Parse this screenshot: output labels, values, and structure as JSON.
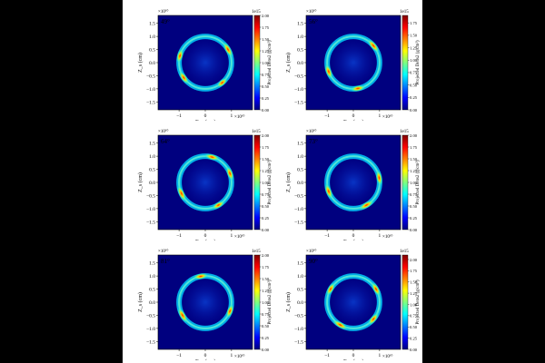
{
  "figure": {
    "background": "#000000",
    "page_color": "#ffffff",
    "colormap": [
      "#00007f",
      "#0000ff",
      "#007fff",
      "#00ffff",
      "#7fff7f",
      "#ffff00",
      "#ff7f00",
      "#ff0000",
      "#7f0000"
    ]
  },
  "chart_data": [
    {
      "type": "heatmap",
      "angle_label": "49°",
      "xlabel": "X_s (cm)",
      "ylabel": "Z_s (cm)",
      "x_exponent": "×10¹⁰",
      "y_exponent": "×10¹⁰",
      "xlim": [
        -1.8,
        1.8
      ],
      "ylim": [
        -1.8,
        1.8
      ],
      "xticks": [
        "−1",
        "0",
        "1"
      ],
      "yticks": [
        "1.5",
        "1.0",
        "0.5",
        "0.0",
        "−0.5",
        "−1.0",
        "−1.5"
      ],
      "colorbar": {
        "label": "Projected Dens2",
        "unit": "(g/cm²)",
        "exponent": "1e15",
        "range": [
          0,
          2.0
        ],
        "ticks": [
          "2.00",
          "1.75",
          "1.50",
          "1.25",
          "1.00",
          "0.75",
          "0.50",
          "0.25",
          "0.00"
        ]
      },
      "ring": {
        "radius": 1.0
      },
      "hotspots": [
        {
          "angle_deg": 30,
          "intensity": 1.0
        },
        {
          "angle_deg": 165,
          "intensity": 0.8
        },
        {
          "angle_deg": 215,
          "intensity": 0.85
        },
        {
          "angle_deg": 310,
          "intensity": 0.7
        }
      ]
    },
    {
      "type": "heatmap",
      "angle_label": "56°",
      "xlabel": "X_s (cm)",
      "ylabel": "Z_s (cm)",
      "x_exponent": "×10¹⁰",
      "y_exponent": "×10¹⁰",
      "xlim": [
        -1.8,
        1.8
      ],
      "ylim": [
        -1.8,
        1.8
      ],
      "xticks": [
        "−1",
        "0",
        "1"
      ],
      "yticks": [
        "1.5",
        "1.0",
        "0.5",
        "0.0",
        "−0.5",
        "−1.0",
        "−1.5"
      ],
      "colorbar": {
        "label": "Projected Dens2",
        "unit": "(g/cm²)",
        "exponent": "1e15",
        "range": [
          0,
          1.9
        ],
        "ticks": [
          "1.75",
          "1.50",
          "1.25",
          "1.00",
          "0.75",
          "0.50",
          "0.25",
          "0.00"
        ]
      },
      "ring": {
        "radius": 1.0
      },
      "hotspots": [
        {
          "angle_deg": 40,
          "intensity": 1.0
        },
        {
          "angle_deg": 200,
          "intensity": 0.9
        },
        {
          "angle_deg": 280,
          "intensity": 0.85
        }
      ]
    },
    {
      "type": "heatmap",
      "angle_label": "64°",
      "xlabel": "X_s (cm)",
      "ylabel": "Z_s (cm)",
      "x_exponent": "×10¹⁰",
      "y_exponent": "×10¹⁰",
      "xlim": [
        -1.8,
        1.8
      ],
      "ylim": [
        -1.8,
        1.8
      ],
      "xticks": [
        "−1",
        "0",
        "1"
      ],
      "yticks": [
        "1.5",
        "1.0",
        "0.5",
        "0.0",
        "−0.5",
        "−1.0",
        "−1.5"
      ],
      "colorbar": {
        "label": "Projected Dens2",
        "unit": "(g/cm²)",
        "exponent": "1e15",
        "range": [
          0,
          2.0
        ],
        "ticks": [
          "2.00",
          "1.75",
          "1.50",
          "1.25",
          "1.00",
          "0.75",
          "0.50",
          "0.25",
          "0.00"
        ]
      },
      "ring": {
        "radius": 1.0
      },
      "hotspots": [
        {
          "angle_deg": 75,
          "intensity": 0.9
        },
        {
          "angle_deg": 20,
          "intensity": 0.85
        },
        {
          "angle_deg": 205,
          "intensity": 1.0
        },
        {
          "angle_deg": 300,
          "intensity": 0.8
        }
      ]
    },
    {
      "type": "heatmap",
      "angle_label": "73°",
      "xlabel": "X_s (cm)",
      "ylabel": "Z_s (cm)",
      "x_exponent": "×10¹⁰",
      "y_exponent": "×10¹⁰",
      "xlim": [
        -1.8,
        1.8
      ],
      "ylim": [
        -1.8,
        1.8
      ],
      "xticks": [
        "−1",
        "0",
        "1"
      ],
      "yticks": [
        "1.5",
        "1.0",
        "0.5",
        "0.0",
        "−0.5",
        "−1.0",
        "−1.5"
      ],
      "colorbar": {
        "label": "Projected Dens2",
        "unit": "(g/cm²)",
        "exponent": "1e15",
        "range": [
          0,
          2.0
        ],
        "ticks": [
          "2.00",
          "1.75",
          "1.50",
          "1.25",
          "1.00",
          "0.75",
          "0.50",
          "0.25",
          "0.00"
        ]
      },
      "ring": {
        "radius": 1.0
      },
      "hotspots": [
        {
          "angle_deg": 10,
          "intensity": 0.9
        },
        {
          "angle_deg": 200,
          "intensity": 0.95
        },
        {
          "angle_deg": 300,
          "intensity": 1.0
        }
      ]
    },
    {
      "type": "heatmap",
      "angle_label": "81°",
      "xlabel": "X_s (cm)",
      "ylabel": "Z_s (cm)",
      "x_exponent": "×10¹⁰",
      "y_exponent": "×10¹⁰",
      "xlim": [
        -1.8,
        1.8
      ],
      "ylim": [
        -1.8,
        1.8
      ],
      "xticks": [
        "−1",
        "0",
        "1"
      ],
      "yticks": [
        "1.5",
        "1.0",
        "0.5",
        "0.0",
        "−0.5",
        "−1.0",
        "−1.5"
      ],
      "colorbar": {
        "label": "Projected Dens2",
        "unit": "(g/cm²)",
        "exponent": "1e15",
        "range": [
          0,
          2.0
        ],
        "ticks": [
          "2.00",
          "1.75",
          "1.50",
          "1.25",
          "1.00",
          "0.75",
          "0.50",
          "0.25",
          "0.00"
        ]
      },
      "ring": {
        "radius": 1.0
      },
      "hotspots": [
        {
          "angle_deg": 100,
          "intensity": 0.85
        },
        {
          "angle_deg": 210,
          "intensity": 1.0
        },
        {
          "angle_deg": 340,
          "intensity": 0.8
        }
      ]
    },
    {
      "type": "heatmap",
      "angle_label": "90°",
      "xlabel": "X_s (cm)",
      "ylabel": "Z_s (cm)",
      "x_exponent": "×10¹⁰",
      "y_exponent": "×10¹⁰",
      "xlim": [
        -1.8,
        1.8
      ],
      "ylim": [
        -1.8,
        1.8
      ],
      "xticks": [
        "−1",
        "0",
        "1"
      ],
      "yticks": [
        "1.5",
        "1.0",
        "0.5",
        "0.0",
        "−0.5",
        "−1.0",
        "−1.5"
      ],
      "colorbar": {
        "label": "Projected Dens2",
        "unit": "(g/cm²)",
        "exponent": "1e15",
        "range": [
          0,
          2.1
        ],
        "ticks": [
          "2.00",
          "1.75",
          "1.50",
          "1.25",
          "1.00",
          "0.75",
          "0.50",
          "0.25",
          "0.00"
        ]
      },
      "ring": {
        "radius": 1.0
      },
      "hotspots": [
        {
          "angle_deg": 30,
          "intensity": 0.9
        },
        {
          "angle_deg": 150,
          "intensity": 0.8
        },
        {
          "angle_deg": 240,
          "intensity": 1.0
        },
        {
          "angle_deg": 320,
          "intensity": 0.85
        }
      ]
    }
  ]
}
